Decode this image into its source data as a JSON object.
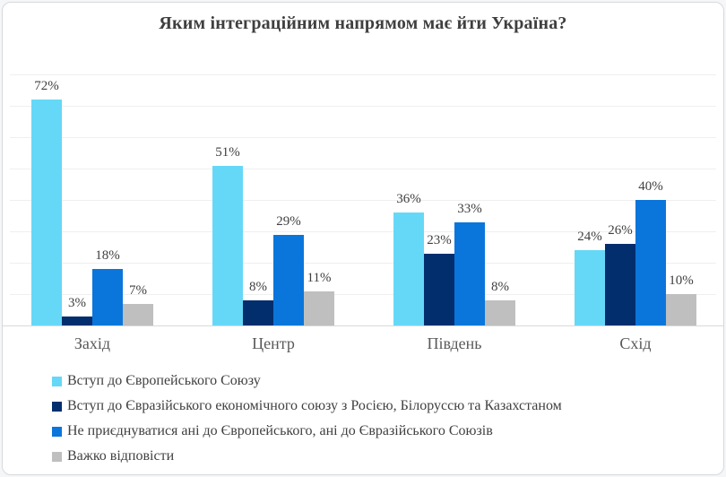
{
  "chart_data": {
    "type": "bar",
    "title": "Яким інтеграційним напрямом має йти Україна?",
    "categories": [
      "Захід",
      "Центр",
      "Південь",
      "Схід"
    ],
    "series": [
      {
        "name": "Вступ до Європейського Союзу",
        "color": "#66D8F7",
        "values": [
          72,
          51,
          36,
          24
        ],
        "labels": [
          "72%",
          "51%",
          "36%",
          "24%"
        ]
      },
      {
        "name": "Вступ до Євразійського економічного союзу  з Росією, Білоруссю та Казахстаном",
        "color": "#032E6E",
        "values": [
          3,
          8,
          23,
          26
        ],
        "labels": [
          "3%",
          "8%",
          "23%",
          "26%"
        ]
      },
      {
        "name": "Не приєднуватися ані до Європейського, ані до Євразійського Союзів",
        "color": "#0A76DB",
        "values": [
          18,
          29,
          33,
          40
        ],
        "labels": [
          "18%",
          "29%",
          "33%",
          "40%"
        ]
      },
      {
        "name": "Важко відповісти",
        "color": "#BFBFBF",
        "values": [
          7,
          11,
          8,
          10
        ],
        "labels": [
          "7%",
          "11%",
          "8%",
          "10%"
        ]
      }
    ],
    "unit": "%",
    "ylabel": "",
    "xlabel": "",
    "ylim": [
      0,
      80
    ],
    "grid": true,
    "grid_step": 10,
    "legend_position": "bottom-left",
    "data_labels_shown": true,
    "colors": {
      "title": "#3f3f3f",
      "data_label": "#404040",
      "category_label": "#595959",
      "gridline": "#efefef",
      "axis_line": "#d9d9d9"
    }
  }
}
